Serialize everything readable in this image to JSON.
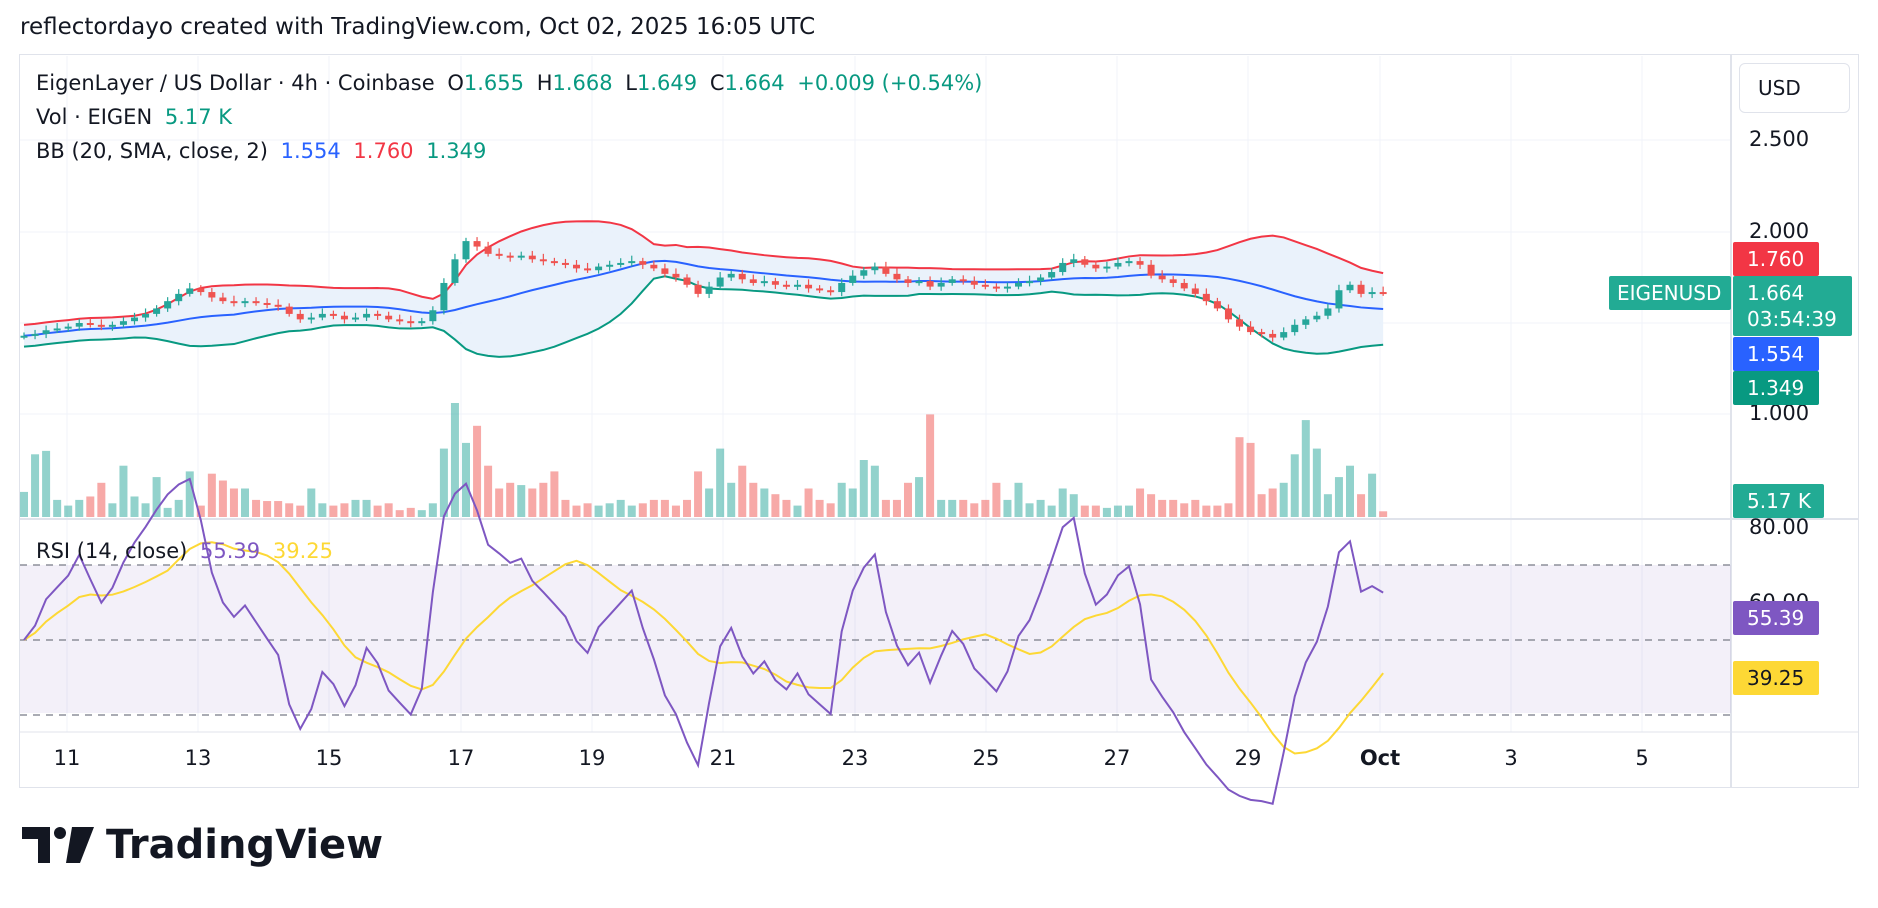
{
  "caption": "reflectordayo created with TradingView.com, Oct 02, 2025 16:05 UTC",
  "legend": {
    "symbol": "EigenLayer / US Dollar · 4h · Coinbase",
    "o_label": "O",
    "o_value": "1.655",
    "h_label": "H",
    "h_value": "1.668",
    "l_label": "L",
    "l_value": "1.649",
    "c_label": "C",
    "c_value": "1.664",
    "change": "+0.009 (+0.54%)",
    "vol_label": "Vol · EIGEN",
    "vol_value": "5.17 K",
    "bb_label": "BB (20, SMA, close, 2)",
    "bb_basis": "1.554",
    "bb_upper": "1.760",
    "bb_lower": "1.349",
    "rsi_label": "RSI (14, close)",
    "rsi_value": "55.39",
    "rsi_ma": "39.25"
  },
  "currency_button": "USD",
  "price_axis": [
    "2.500",
    "2.000",
    "1.000"
  ],
  "rsi_axis": [
    "80.00",
    "60.00"
  ],
  "tags": {
    "upper": "1.760",
    "symbol": "EIGENUSD",
    "last": "1.664",
    "countdown": "03:54:39",
    "basis": "1.554",
    "lower": "1.349",
    "volume": "5.17 K",
    "rsi": "55.39",
    "rsi_ma": "39.25"
  },
  "x_labels": [
    "11",
    "13",
    "15",
    "17",
    "19",
    "21",
    "23",
    "25",
    "27",
    "29",
    "Oct",
    "3",
    "5"
  ],
  "brand": "TradingView",
  "colors": {
    "up": "#26a69a",
    "down": "#ef5350",
    "basis": "#2962ff",
    "upper": "#f23645",
    "lower": "#089981",
    "rsi": "#7e57c2",
    "rsi_ma": "#fdd835",
    "band_fill": "#e8f1fb"
  },
  "chart_data": {
    "type": "candlestick",
    "symbol": "EIGENUSD",
    "timeframe": "4h",
    "x_range": [
      "Sep 10",
      "Oct 6"
    ],
    "price_range": [
      1.0,
      2.5
    ],
    "price_close_approx": [
      1.43,
      1.44,
      1.46,
      1.47,
      1.48,
      1.5,
      1.49,
      1.48,
      1.49,
      1.51,
      1.53,
      1.55,
      1.58,
      1.62,
      1.66,
      1.69,
      1.67,
      1.64,
      1.62,
      1.61,
      1.62,
      1.61,
      1.6,
      1.59,
      1.55,
      1.52,
      1.53,
      1.55,
      1.54,
      1.52,
      1.53,
      1.55,
      1.54,
      1.52,
      1.51,
      1.5,
      1.51,
      1.57,
      1.72,
      1.85,
      1.95,
      1.92,
      1.88,
      1.87,
      1.86,
      1.87,
      1.85,
      1.84,
      1.83,
      1.82,
      1.8,
      1.79,
      1.81,
      1.82,
      1.83,
      1.84,
      1.82,
      1.8,
      1.77,
      1.75,
      1.71,
      1.66,
      1.7,
      1.75,
      1.77,
      1.74,
      1.72,
      1.73,
      1.71,
      1.7,
      1.71,
      1.69,
      1.68,
      1.67,
      1.72,
      1.76,
      1.79,
      1.81,
      1.77,
      1.74,
      1.72,
      1.73,
      1.7,
      1.72,
      1.74,
      1.73,
      1.71,
      1.7,
      1.69,
      1.7,
      1.72,
      1.73,
      1.75,
      1.78,
      1.83,
      1.85,
      1.82,
      1.8,
      1.81,
      1.83,
      1.84,
      1.82,
      1.76,
      1.74,
      1.72,
      1.69,
      1.66,
      1.62,
      1.58,
      1.52,
      1.48,
      1.45,
      1.44,
      1.42,
      1.45,
      1.49,
      1.52,
      1.54,
      1.58,
      1.68,
      1.71,
      1.66,
      1.67,
      1.664
    ],
    "volume_approx": [
      22,
      55,
      58,
      15,
      10,
      15,
      18,
      30,
      12,
      45,
      18,
      12,
      35,
      8,
      15,
      40,
      10,
      38,
      32,
      25,
      25,
      15,
      14,
      14,
      12,
      10,
      25,
      12,
      10,
      12,
      15,
      15,
      10,
      12,
      6,
      8,
      6,
      12,
      60,
      100,
      65,
      80,
      45,
      25,
      30,
      28,
      25,
      30,
      40,
      15,
      10,
      12,
      10,
      12,
      15,
      10,
      12,
      15,
      15,
      10,
      15,
      40,
      25,
      60,
      30,
      45,
      30,
      25,
      20,
      15,
      10,
      25,
      15,
      12,
      30,
      25,
      50,
      45,
      15,
      15,
      30,
      35,
      90,
      15,
      15,
      15,
      12,
      15,
      30,
      15,
      30,
      12,
      15,
      10,
      25,
      20,
      10,
      10,
      8,
      10,
      10,
      25,
      20,
      15,
      15,
      12,
      15,
      10,
      10,
      12,
      70,
      65,
      20,
      25,
      30,
      55,
      85,
      60,
      20,
      35,
      45,
      20,
      38,
      5
    ],
    "bollinger": {
      "period": 20,
      "basis": 1.554,
      "upper": 1.76,
      "lower": 1.349
    },
    "rsi": {
      "period": 14,
      "value": 55.39,
      "ma": 39.25,
      "levels": [
        70,
        50,
        30
      ],
      "visible_ticks": [
        80,
        60
      ]
    }
  }
}
